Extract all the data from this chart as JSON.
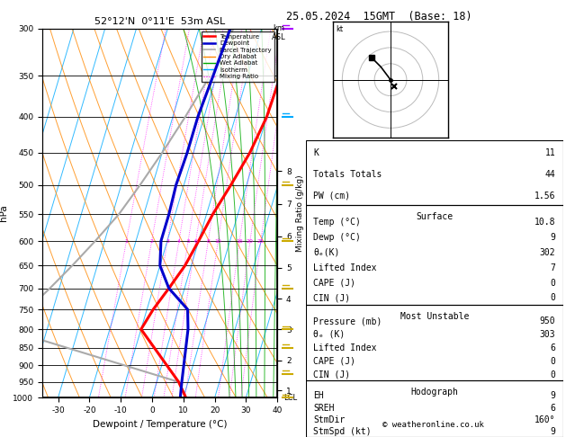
{
  "title_left": "52°12'N  0°11'E  53m ASL",
  "title_right": "25.05.2024  15GMT  (Base: 18)",
  "xlabel": "Dewpoint / Temperature (°C)",
  "ylabel_left": "hPa",
  "temp_color": "#ff0000",
  "dewp_color": "#0000cc",
  "parcel_color": "#aaaaaa",
  "dry_adiabat_color": "#ff8800",
  "wet_adiabat_color": "#00aa00",
  "isotherm_color": "#00aaff",
  "mixing_ratio_color": "#ff00ff",
  "xmin": -35,
  "xmax": 40,
  "pmin": 300,
  "pmax": 1000,
  "skew": 35,
  "temp_x": [
    10.5,
    10.5,
    10.0,
    8.0,
    5.0,
    2.0,
    0.0,
    -2.0,
    -5.0,
    -8.0,
    -10.0,
    7.0,
    10.8
  ],
  "temp_p": [
    300,
    350,
    400,
    450,
    500,
    550,
    600,
    650,
    700,
    750,
    800,
    950,
    1000
  ],
  "dewp_x": [
    -10.0,
    -11.0,
    -12.0,
    -12.0,
    -12.5,
    -12.0,
    -12.0,
    -10.0,
    -5.0,
    3.0,
    5.0,
    8.0,
    9.0
  ],
  "dewp_p": [
    300,
    350,
    400,
    450,
    500,
    550,
    600,
    650,
    700,
    750,
    800,
    950,
    1000
  ],
  "parcel_x": [
    -9.0,
    -12.0,
    -16.0,
    -20.0,
    -24.0,
    -28.0,
    -33.0,
    -38.0,
    -43.0,
    -48.0,
    -53.0,
    7.0,
    10.8
  ],
  "parcel_p": [
    300,
    350,
    400,
    450,
    500,
    550,
    600,
    650,
    700,
    750,
    800,
    950,
    1000
  ],
  "km_pressures": [
    977,
    885,
    800,
    724,
    655,
    591,
    532,
    478
  ],
  "km_labels": [
    "1",
    "2",
    "3",
    "4",
    "5",
    "6",
    "7",
    "8"
  ],
  "mixing_ratio_vals": [
    1,
    2,
    3,
    4,
    5,
    6,
    8,
    10,
    16,
    20,
    25
  ],
  "info_K": 11,
  "info_TT": 44,
  "info_PW": "1.56",
  "sfc_temp": "10.8",
  "sfc_dewp": "9",
  "sfc_thetae": "302",
  "sfc_li": "7",
  "sfc_cape": "0",
  "sfc_cin": "0",
  "mu_pressure": "950",
  "mu_thetae": "303",
  "mu_li": "6",
  "mu_cape": "0",
  "mu_cin": "0",
  "hodo_EH": "9",
  "hodo_SREH": "6",
  "hodo_StmDir": "160°",
  "hodo_StmSpd": "9"
}
